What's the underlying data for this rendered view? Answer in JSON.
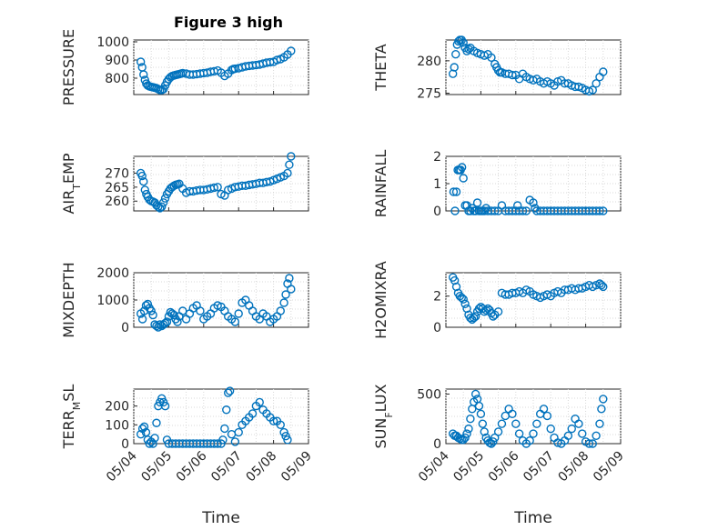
{
  "title": "Figure 3 high",
  "colors": {
    "marker": "#0072BD",
    "axis": "#262626",
    "grid": "#d9d9d9"
  },
  "chart_data": [
    {
      "type": "scatter",
      "name": "pressure",
      "ylabel": "PRESSURE",
      "xlabel": "",
      "title": "Figure 3 high",
      "xlim": [
        0,
        5
      ],
      "ylim": [
        710,
        1010
      ],
      "yticks": [
        800,
        900,
        1000
      ],
      "xticks": [],
      "x": [
        0.2,
        0.24,
        0.28,
        0.32,
        0.36,
        0.4,
        0.45,
        0.5,
        0.55,
        0.6,
        0.65,
        0.7,
        0.75,
        0.8,
        0.85,
        0.9,
        0.95,
        1.0,
        1.05,
        1.1,
        1.15,
        1.2,
        1.25,
        1.3,
        1.35,
        1.4,
        1.5,
        1.6,
        1.7,
        1.8,
        1.9,
        2.0,
        2.1,
        2.2,
        2.3,
        2.4,
        2.5,
        2.6,
        2.7,
        2.8,
        2.85,
        2.9,
        3.0,
        3.1,
        3.2,
        3.3,
        3.4,
        3.5,
        3.6,
        3.7,
        3.8,
        3.9,
        4.0,
        4.1,
        4.2,
        4.3,
        4.4,
        4.5
      ],
      "y": [
        890,
        860,
        820,
        790,
        770,
        760,
        755,
        752,
        750,
        748,
        745,
        740,
        735,
        735,
        740,
        760,
        780,
        795,
        805,
        812,
        815,
        818,
        820,
        822,
        825,
        828,
        825,
        820,
        820,
        822,
        825,
        828,
        830,
        835,
        838,
        842,
        830,
        812,
        825,
        845,
        850,
        852,
        855,
        860,
        865,
        868,
        870,
        872,
        875,
        880,
        885,
        888,
        890,
        900,
        905,
        915,
        930,
        950
      ]
    },
    {
      "type": "scatter",
      "name": "theta",
      "ylabel": "THETA",
      "xlabel": "",
      "title": "",
      "xlim": [
        0,
        5
      ],
      "ylim": [
        274.8,
        283.2
      ],
      "yticks": [
        275,
        280
      ],
      "xticks": [],
      "x": [
        0.2,
        0.24,
        0.28,
        0.32,
        0.36,
        0.4,
        0.45,
        0.5,
        0.55,
        0.6,
        0.65,
        0.7,
        0.8,
        0.9,
        1.0,
        1.1,
        1.2,
        1.3,
        1.4,
        1.45,
        1.5,
        1.55,
        1.6,
        1.7,
        1.8,
        1.9,
        2.0,
        2.1,
        2.2,
        2.3,
        2.4,
        2.5,
        2.6,
        2.7,
        2.8,
        2.9,
        3.0,
        3.1,
        3.2,
        3.3,
        3.4,
        3.5,
        3.6,
        3.7,
        3.8,
        3.9,
        4.0,
        4.1,
        4.2,
        4.3,
        4.4,
        4.5
      ],
      "y": [
        278,
        279,
        281,
        282.5,
        283,
        283.2,
        283.2,
        282.8,
        282,
        281.5,
        281.8,
        282,
        281.5,
        281.2,
        281,
        280.8,
        281,
        280.5,
        279.5,
        279,
        278.5,
        278.2,
        278.2,
        278,
        278,
        277.8,
        277.8,
        277.2,
        278,
        277.5,
        277.2,
        277,
        277.2,
        276.8,
        276.5,
        276.8,
        276.5,
        276.2,
        276.8,
        277,
        276.5,
        276.5,
        276.2,
        276,
        276,
        275.8,
        275.5,
        275.3,
        275.5,
        276.5,
        277.5,
        278.3
      ]
    },
    {
      "type": "scatter",
      "name": "air-temp",
      "ylabel": "AIR_TEMP",
      "xlabel": "",
      "title": "",
      "xlim": [
        0,
        5
      ],
      "ylim": [
        256.5,
        276
      ],
      "yticks": [
        260,
        265,
        270
      ],
      "xticks": [],
      "x": [
        0.2,
        0.24,
        0.28,
        0.32,
        0.36,
        0.4,
        0.45,
        0.5,
        0.55,
        0.6,
        0.65,
        0.7,
        0.75,
        0.8,
        0.85,
        0.9,
        0.95,
        1.0,
        1.05,
        1.1,
        1.15,
        1.2,
        1.25,
        1.3,
        1.4,
        1.5,
        1.6,
        1.7,
        1.8,
        1.9,
        2.0,
        2.1,
        2.2,
        2.3,
        2.4,
        2.5,
        2.6,
        2.7,
        2.8,
        2.9,
        3.0,
        3.1,
        3.2,
        3.3,
        3.4,
        3.5,
        3.6,
        3.7,
        3.8,
        3.9,
        4.0,
        4.1,
        4.2,
        4.3,
        4.4,
        4.45,
        4.5
      ],
      "y": [
        270,
        269,
        267,
        264,
        262.5,
        261.5,
        260.5,
        260,
        259.8,
        259.5,
        258.5,
        258,
        257.5,
        258,
        259.5,
        261,
        262.5,
        263.5,
        264.5,
        265,
        265.5,
        265.8,
        266,
        266.2,
        264.5,
        263,
        263.5,
        263.5,
        263.8,
        264,
        264,
        264.2,
        264.5,
        264.8,
        265,
        262.5,
        262,
        264,
        264.5,
        265,
        265.2,
        265.5,
        265.5,
        265.8,
        266,
        266.2,
        266.5,
        266.5,
        266.8,
        267,
        267.5,
        268,
        268.5,
        269,
        270,
        273,
        276
      ]
    },
    {
      "type": "scatter",
      "name": "rainfall",
      "ylabel": "RAINFALL",
      "xlabel": "",
      "title": "",
      "xlim": [
        0,
        5
      ],
      "ylim": [
        0,
        2
      ],
      "yticks": [
        0,
        1,
        2
      ],
      "xticks": [],
      "x": [
        0.22,
        0.26,
        0.3,
        0.34,
        0.38,
        0.42,
        0.46,
        0.5,
        0.55,
        0.6,
        0.65,
        0.7,
        0.75,
        0.8,
        0.85,
        0.9,
        0.95,
        1.0,
        1.05,
        1.1,
        1.15,
        1.2,
        1.3,
        1.4,
        1.5,
        1.6,
        1.7,
        1.8,
        1.9,
        2.0,
        2.05,
        2.1,
        2.2,
        2.3,
        2.4,
        2.5,
        2.55,
        2.6,
        2.7,
        2.8,
        2.9,
        3.0,
        3.1,
        3.2,
        3.3,
        3.4,
        3.5,
        3.6,
        3.7,
        3.8,
        3.9,
        4.0,
        4.1,
        4.2,
        4.3,
        4.4,
        4.5
      ],
      "y": [
        0.7,
        0,
        0.7,
        1.5,
        1.5,
        1.5,
        1.6,
        1.2,
        0.2,
        0.2,
        0,
        0,
        0.1,
        0,
        0,
        0.3,
        0,
        0,
        0,
        0,
        0.1,
        0,
        0,
        0,
        0,
        0.2,
        0,
        0,
        0,
        0,
        0.2,
        0,
        0,
        0,
        0.4,
        0.3,
        0.1,
        0,
        0,
        0,
        0,
        0,
        0,
        0,
        0,
        0,
        0,
        0,
        0,
        0,
        0,
        0,
        0,
        0,
        0,
        0,
        0
      ]
    },
    {
      "type": "scatter",
      "name": "mixdepth",
      "ylabel": "MIXDEPTH",
      "xlabel": "",
      "title": "",
      "xlim": [
        0,
        5
      ],
      "ylim": [
        0,
        2000
      ],
      "yticks": [
        0,
        1000,
        2000
      ],
      "xticks": [],
      "x": [
        0.2,
        0.25,
        0.3,
        0.35,
        0.4,
        0.45,
        0.5,
        0.55,
        0.6,
        0.65,
        0.7,
        0.75,
        0.8,
        0.85,
        0.9,
        0.95,
        1.0,
        1.05,
        1.1,
        1.15,
        1.2,
        1.25,
        1.3,
        1.4,
        1.5,
        1.6,
        1.7,
        1.8,
        1.9,
        2.0,
        2.1,
        2.2,
        2.3,
        2.4,
        2.5,
        2.6,
        2.7,
        2.8,
        2.9,
        3.0,
        3.1,
        3.2,
        3.3,
        3.4,
        3.5,
        3.6,
        3.7,
        3.8,
        3.9,
        4.0,
        4.1,
        4.2,
        4.3,
        4.35,
        4.4,
        4.45,
        4.5
      ],
      "y": [
        500,
        300,
        600,
        800,
        850,
        700,
        600,
        450,
        100,
        50,
        0,
        100,
        50,
        100,
        150,
        200,
        400,
        550,
        500,
        450,
        300,
        200,
        400,
        600,
        300,
        500,
        700,
        800,
        600,
        300,
        400,
        500,
        700,
        800,
        750,
        600,
        400,
        300,
        200,
        500,
        900,
        1000,
        800,
        600,
        400,
        300,
        500,
        400,
        200,
        300,
        400,
        600,
        900,
        1200,
        1600,
        1800,
        1400
      ]
    },
    {
      "type": "scatter",
      "name": "h2omixra",
      "ylabel": "H2OMIXRA",
      "xlabel": "",
      "title": "",
      "xlim": [
        0,
        5
      ],
      "ylim": [
        0,
        3.5
      ],
      "yticks": [
        0,
        2
      ],
      "xticks": [],
      "x": [
        0.2,
        0.25,
        0.3,
        0.35,
        0.4,
        0.45,
        0.5,
        0.55,
        0.6,
        0.65,
        0.7,
        0.75,
        0.8,
        0.85,
        0.9,
        0.95,
        1.0,
        1.05,
        1.1,
        1.15,
        1.2,
        1.25,
        1.3,
        1.35,
        1.4,
        1.5,
        1.6,
        1.7,
        1.8,
        1.9,
        2.0,
        2.1,
        2.2,
        2.3,
        2.4,
        2.5,
        2.6,
        2.7,
        2.8,
        2.9,
        3.0,
        3.1,
        3.2,
        3.3,
        3.4,
        3.5,
        3.6,
        3.7,
        3.8,
        3.9,
        4.0,
        4.1,
        4.2,
        4.3,
        4.4,
        4.45,
        4.5
      ],
      "y": [
        3.2,
        3,
        2.6,
        2.2,
        2,
        1.9,
        1.8,
        1.5,
        1.2,
        0.8,
        0.6,
        0.5,
        0.6,
        0.7,
        1,
        1.2,
        1.3,
        1.2,
        1,
        1.1,
        1.2,
        1.1,
        0.9,
        0.7,
        0.8,
        1,
        2.2,
        2.1,
        2.1,
        2.2,
        2.2,
        2.3,
        2.2,
        2.4,
        2.3,
        2.1,
        2,
        1.9,
        2,
        2.1,
        2,
        2.2,
        2.3,
        2.2,
        2.4,
        2.4,
        2.5,
        2.4,
        2.5,
        2.5,
        2.6,
        2.7,
        2.6,
        2.7,
        2.8,
        2.7,
        2.6
      ]
    },
    {
      "type": "scatter",
      "name": "terr-msl",
      "ylabel": "TERR_MSL",
      "xlabel": "Time",
      "title": "",
      "xlim": [
        0,
        5
      ],
      "ylim": [
        0,
        290
      ],
      "yticks": [
        0,
        100,
        200
      ],
      "xticks": [
        0,
        1,
        2,
        3,
        4,
        5
      ],
      "xticklabels": [
        "05/04",
        "05/05",
        "05/06",
        "05/07",
        "05/08",
        "05/09"
      ],
      "x": [
        0.2,
        0.25,
        0.3,
        0.35,
        0.4,
        0.45,
        0.5,
        0.55,
        0.6,
        0.65,
        0.7,
        0.75,
        0.8,
        0.85,
        0.9,
        0.95,
        1.0,
        1.1,
        1.2,
        1.3,
        1.4,
        1.5,
        1.6,
        1.7,
        1.8,
        1.9,
        2.0,
        2.1,
        2.2,
        2.3,
        2.4,
        2.5,
        2.55,
        2.6,
        2.65,
        2.7,
        2.75,
        2.8,
        2.9,
        3.0,
        3.1,
        3.2,
        3.3,
        3.4,
        3.5,
        3.6,
        3.7,
        3.8,
        3.9,
        4.0,
        4.1,
        4.2,
        4.3,
        4.35,
        4.4
      ],
      "y": [
        50,
        80,
        90,
        60,
        20,
        0,
        10,
        0,
        30,
        110,
        200,
        220,
        240,
        220,
        200,
        20,
        0,
        0,
        0,
        0,
        0,
        0,
        0,
        0,
        0,
        0,
        0,
        0,
        0,
        0,
        0,
        0,
        20,
        80,
        180,
        270,
        280,
        50,
        10,
        60,
        100,
        120,
        140,
        160,
        200,
        220,
        180,
        160,
        140,
        120,
        120,
        100,
        60,
        40,
        20
      ]
    },
    {
      "type": "scatter",
      "name": "sun-flux",
      "ylabel": "SUN_FLUX",
      "xlabel": "Time",
      "title": "",
      "xlim": [
        0,
        5
      ],
      "ylim": [
        0,
        550
      ],
      "yticks": [
        0,
        500
      ],
      "xticks": [
        0,
        1,
        2,
        3,
        4,
        5
      ],
      "xticklabels": [
        "05/04",
        "05/05",
        "05/06",
        "05/07",
        "05/08",
        "05/09"
      ],
      "x": [
        0.2,
        0.25,
        0.3,
        0.35,
        0.4,
        0.45,
        0.5,
        0.55,
        0.6,
        0.65,
        0.7,
        0.75,
        0.8,
        0.85,
        0.9,
        0.95,
        1.0,
        1.05,
        1.1,
        1.15,
        1.2,
        1.25,
        1.3,
        1.35,
        1.4,
        1.5,
        1.6,
        1.7,
        1.8,
        1.9,
        2.0,
        2.1,
        2.2,
        2.3,
        2.4,
        2.5,
        2.6,
        2.7,
        2.8,
        2.9,
        3.0,
        3.1,
        3.2,
        3.3,
        3.4,
        3.5,
        3.6,
        3.7,
        3.8,
        3.9,
        4.0,
        4.1,
        4.2,
        4.3,
        4.4,
        4.45,
        4.5
      ],
      "y": [
        100,
        80,
        80,
        60,
        50,
        40,
        40,
        60,
        100,
        150,
        250,
        350,
        420,
        500,
        450,
        380,
        300,
        200,
        120,
        60,
        30,
        10,
        0,
        20,
        60,
        120,
        200,
        280,
        350,
        300,
        200,
        100,
        30,
        0,
        30,
        100,
        200,
        300,
        350,
        280,
        150,
        60,
        10,
        0,
        30,
        80,
        150,
        250,
        200,
        100,
        20,
        0,
        0,
        80,
        200,
        350,
        450
      ]
    }
  ]
}
